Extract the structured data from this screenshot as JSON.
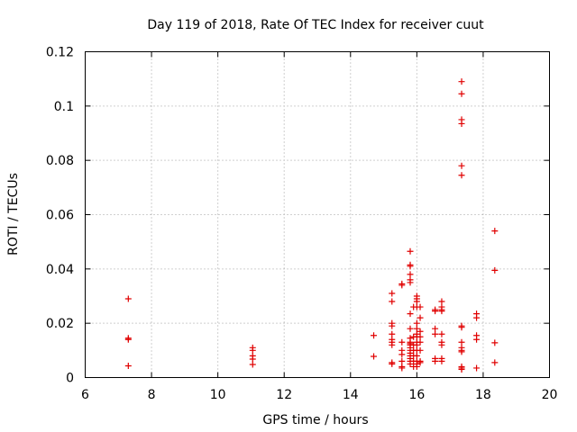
{
  "chart_data": {
    "type": "scatter",
    "title": "Day 119 of 2018, Rate Of TEC Index for receiver cuut",
    "xlabel": "GPS time / hours",
    "ylabel": "ROTI / TECUs",
    "xlim": [
      6,
      20
    ],
    "ylim": [
      0,
      0.12
    ],
    "x_ticks": [
      6,
      8,
      10,
      12,
      14,
      16,
      18,
      20
    ],
    "y_ticks": [
      0,
      0.02,
      0.04,
      0.06,
      0.08,
      0.1,
      0.12
    ],
    "x_tick_labels": [
      "6",
      "8",
      "10",
      "12",
      "14",
      "16",
      "18",
      "20"
    ],
    "y_tick_labels": [
      "0",
      "0.02",
      "0.04",
      "0.06",
      "0.08",
      "0.1",
      "0.12"
    ],
    "grid": true,
    "marker": "+",
    "color": "#e00000",
    "series": [
      {
        "name": "ROTI",
        "points": [
          [
            7.3,
            0.029
          ],
          [
            7.3,
            0.0145
          ],
          [
            7.3,
            0.014
          ],
          [
            7.3,
            0.0043
          ],
          [
            11.05,
            0.011
          ],
          [
            11.05,
            0.01
          ],
          [
            11.05,
            0.008
          ],
          [
            11.05,
            0.0068
          ],
          [
            11.05,
            0.0048
          ],
          [
            14.7,
            0.0155
          ],
          [
            14.7,
            0.0078
          ],
          [
            15.25,
            0.031
          ],
          [
            15.25,
            0.028
          ],
          [
            15.25,
            0.02
          ],
          [
            15.25,
            0.019
          ],
          [
            15.25,
            0.016
          ],
          [
            15.25,
            0.014
          ],
          [
            15.25,
            0.013
          ],
          [
            15.25,
            0.012
          ],
          [
            15.25,
            0.0055
          ],
          [
            15.25,
            0.005
          ],
          [
            15.55,
            0.0345
          ],
          [
            15.55,
            0.034
          ],
          [
            15.55,
            0.013
          ],
          [
            15.55,
            0.01
          ],
          [
            15.55,
            0.0085
          ],
          [
            15.55,
            0.006
          ],
          [
            15.55,
            0.004
          ],
          [
            15.55,
            0.0035
          ],
          [
            15.8,
            0.0465
          ],
          [
            15.8,
            0.0415
          ],
          [
            15.8,
            0.041
          ],
          [
            15.8,
            0.038
          ],
          [
            15.8,
            0.036
          ],
          [
            15.8,
            0.035
          ],
          [
            15.8,
            0.0235
          ],
          [
            15.8,
            0.018
          ],
          [
            15.8,
            0.0145
          ],
          [
            15.8,
            0.013
          ],
          [
            15.8,
            0.0125
          ],
          [
            15.8,
            0.012
          ],
          [
            15.8,
            0.011
          ],
          [
            15.8,
            0.01
          ],
          [
            15.8,
            0.009
          ],
          [
            15.8,
            0.008
          ],
          [
            15.8,
            0.007
          ],
          [
            15.8,
            0.006
          ],
          [
            15.8,
            0.005
          ],
          [
            15.9,
            0.026
          ],
          [
            15.9,
            0.015
          ],
          [
            15.9,
            0.012
          ],
          [
            15.9,
            0.01
          ],
          [
            15.9,
            0.008
          ],
          [
            15.9,
            0.006
          ],
          [
            15.9,
            0.004
          ],
          [
            16.0,
            0.03
          ],
          [
            16.0,
            0.029
          ],
          [
            16.0,
            0.028
          ],
          [
            16.0,
            0.026
          ],
          [
            16.0,
            0.02
          ],
          [
            16.0,
            0.018
          ],
          [
            16.0,
            0.016
          ],
          [
            16.0,
            0.015
          ],
          [
            16.0,
            0.013
          ],
          [
            16.0,
            0.012
          ],
          [
            16.0,
            0.01
          ],
          [
            16.0,
            0.008
          ],
          [
            16.0,
            0.006
          ],
          [
            16.0,
            0.005
          ],
          [
            16.0,
            0.004
          ],
          [
            16.1,
            0.026
          ],
          [
            16.1,
            0.022
          ],
          [
            16.1,
            0.017
          ],
          [
            16.1,
            0.015
          ],
          [
            16.1,
            0.013
          ],
          [
            16.1,
            0.01
          ],
          [
            16.1,
            0.006
          ],
          [
            16.1,
            0.0055
          ],
          [
            16.55,
            0.025
          ],
          [
            16.55,
            0.0245
          ],
          [
            16.55,
            0.018
          ],
          [
            16.55,
            0.016
          ],
          [
            16.55,
            0.007
          ],
          [
            16.55,
            0.006
          ],
          [
            16.75,
            0.028
          ],
          [
            16.75,
            0.026
          ],
          [
            16.75,
            0.025
          ],
          [
            16.75,
            0.0245
          ],
          [
            16.75,
            0.016
          ],
          [
            16.75,
            0.013
          ],
          [
            16.75,
            0.012
          ],
          [
            16.75,
            0.007
          ],
          [
            16.75,
            0.006
          ],
          [
            17.35,
            0.109
          ],
          [
            17.35,
            0.1045
          ],
          [
            17.35,
            0.095
          ],
          [
            17.35,
            0.0935
          ],
          [
            17.35,
            0.078
          ],
          [
            17.35,
            0.0745
          ],
          [
            17.35,
            0.019
          ],
          [
            17.35,
            0.0185
          ],
          [
            17.35,
            0.013
          ],
          [
            17.35,
            0.011
          ],
          [
            17.35,
            0.01
          ],
          [
            17.35,
            0.0095
          ],
          [
            17.35,
            0.004
          ],
          [
            17.35,
            0.0035
          ],
          [
            17.35,
            0.003
          ],
          [
            17.8,
            0.0235
          ],
          [
            17.8,
            0.022
          ],
          [
            17.8,
            0.0155
          ],
          [
            17.8,
            0.014
          ],
          [
            17.8,
            0.0035
          ],
          [
            18.35,
            0.054
          ],
          [
            18.35,
            0.0395
          ],
          [
            18.35,
            0.0128
          ],
          [
            18.35,
            0.0055
          ]
        ]
      }
    ]
  }
}
